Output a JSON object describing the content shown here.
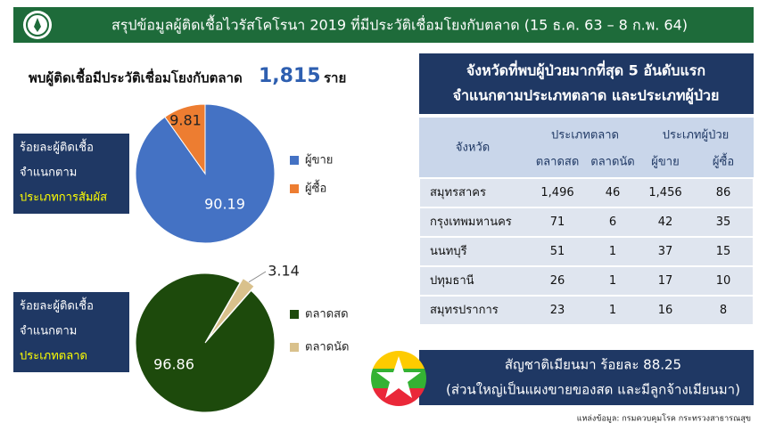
{
  "header": {
    "title": "สรุปข้อมูลผู้ติดเชื้อไวรัสโคโรนา 2019 ที่มีประวัติเชื่อมโยงกับตลาด (15 ธ.ค. 63 – 8 ก.พ. 64)"
  },
  "summary": {
    "text": "พบผู้ติดเชื้อมีประวัติเชื่อมโยงกับตลาด",
    "count": "1,815",
    "unit": "ราย"
  },
  "chart_data": [
    {
      "type": "pie",
      "title_lines": [
        "ร้อยละผู้ติดเชื้อ",
        "จำแนกตาม",
        "ประเภทการสัมผัส"
      ],
      "categories": [
        "ผู้ขาย",
        "ผู้ซื้อ"
      ],
      "values": [
        90.19,
        9.81
      ],
      "colors": [
        "#4472c4",
        "#ed7d31"
      ]
    },
    {
      "type": "pie",
      "title_lines": [
        "ร้อยละผู้ติดเชื้อ",
        "จำแนกตาม",
        "ประเภทตลาด"
      ],
      "categories": [
        "ตลาดสด",
        "ตลาดนัด"
      ],
      "values": [
        96.86,
        3.14
      ],
      "colors": [
        "#1d4a0c",
        "#d9c18c"
      ]
    }
  ],
  "table": {
    "title_lines": [
      "จังหวัดที่พบผู้ป่วยมากที่สุด 5 อันดับแรก",
      "จำแนกตามประเภทตลาด และประเภทผู้ป่วย"
    ],
    "header": {
      "province": "จังหวัด",
      "groups": [
        {
          "label": "ประเภทตลาด",
          "columns": [
            "ตลาดสด",
            "ตลาดนัด"
          ]
        },
        {
          "label": "ประเภทผู้ป่วย",
          "columns": [
            "ผู้ขาย",
            "ผู้ซื้อ"
          ]
        }
      ]
    },
    "rows": [
      [
        "สมุทรสาคร",
        "1,496",
        "46",
        "1,456",
        "86"
      ],
      [
        "กรุงเทพมหานคร",
        "71",
        "6",
        "42",
        "35"
      ],
      [
        "นนทบุรี",
        "51",
        "1",
        "37",
        "15"
      ],
      [
        "ปทุมธานี",
        "26",
        "1",
        "17",
        "10"
      ],
      [
        "สมุทรปราการ",
        "23",
        "1",
        "16",
        "8"
      ]
    ]
  },
  "banner": {
    "lines": [
      "สัญชาติเมียนมา ร้อยละ 88.25",
      "(ส่วนใหญ่เป็นแผงขายของสด  และมีลูกจ้างเมียนมา)"
    ]
  },
  "source": "แหล่งข้อมูล: กรมควบคุมโรค กระทรวงสาธารณสุข"
}
